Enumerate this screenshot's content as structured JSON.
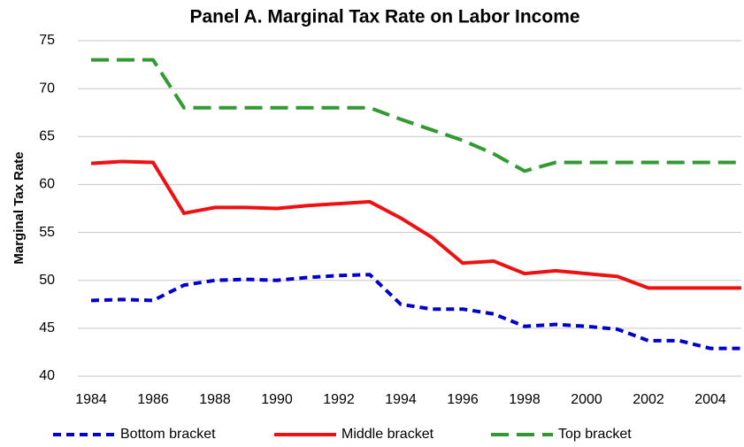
{
  "chart_data": {
    "type": "line",
    "title": "Panel A. Marginal Tax Rate on Labor Income",
    "y_label": "Marginal Tax Rate",
    "x": [
      1984,
      1985,
      1986,
      1987,
      1988,
      1989,
      1990,
      1991,
      1992,
      1993,
      1994,
      1995,
      1996,
      1997,
      1998,
      1999,
      2000,
      2001,
      2002,
      2003,
      2004,
      2005
    ],
    "series": [
      {
        "name": "Bottom bracket",
        "color": "#0000cc",
        "line_style": "short-dash",
        "values": [
          47.9,
          48.0,
          47.9,
          49.5,
          50.0,
          50.1,
          50.0,
          50.3,
          50.5,
          50.6,
          47.5,
          47.0,
          47.0,
          46.5,
          45.2,
          45.4,
          45.2,
          44.9,
          43.7,
          43.7,
          42.9,
          42.9
        ]
      },
      {
        "name": "Middle bracket",
        "color": "#ee1111",
        "line_style": "solid",
        "values": [
          62.2,
          62.4,
          62.3,
          57.0,
          57.6,
          57.6,
          57.5,
          57.8,
          58.0,
          58.2,
          56.5,
          54.5,
          51.8,
          52.0,
          50.7,
          51.0,
          50.7,
          50.4,
          49.2,
          49.2,
          49.2,
          49.2
        ]
      },
      {
        "name": "Top bracket",
        "color": "#339933",
        "line_style": "long-dash",
        "values": [
          73,
          73,
          73,
          68,
          68,
          68,
          68,
          68,
          68,
          68,
          66.8,
          65.7,
          64.6,
          63.2,
          61.4,
          62.3,
          62.3,
          62.3,
          62.3,
          62.3,
          62.3,
          62.3
        ]
      }
    ],
    "xlim": [
      1984,
      2005
    ],
    "xticks": [
      1984,
      1986,
      1988,
      1990,
      1992,
      1994,
      1996,
      1998,
      2000,
      2002,
      2004
    ],
    "ylim": [
      40,
      75
    ],
    "yticks": [
      40,
      45,
      50,
      55,
      60,
      65,
      70,
      75
    ],
    "grid": true,
    "legend": "bottom"
  }
}
